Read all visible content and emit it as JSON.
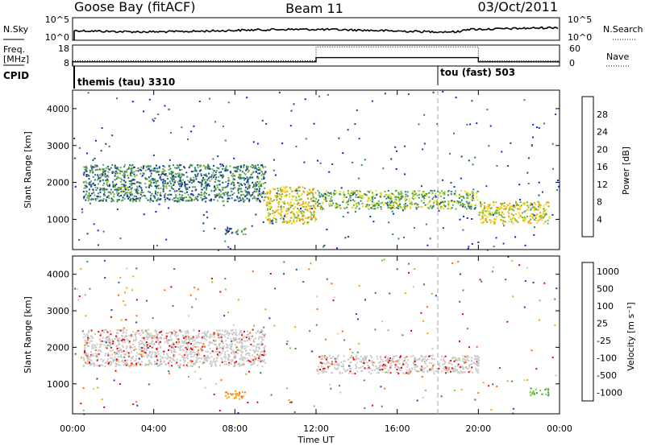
{
  "header": {
    "station": "Goose Bay (fitACF)",
    "beam": "Beam 11",
    "date": "03/Oct/2011"
  },
  "noise_panel": {
    "left_label": "N.Sky",
    "right_label": "N.Search",
    "left_ticks": [
      "10^5",
      "10^0"
    ],
    "right_ticks": [
      "10^5",
      "10^0"
    ]
  },
  "freq_panel": {
    "left_label_1": "Freq.",
    "left_label_2": "[MHz]",
    "right_label": "Nave",
    "left_ticks": [
      "18",
      "8"
    ],
    "right_ticks": [
      "60",
      "0"
    ]
  },
  "cpid_panel": {
    "label": "CPID",
    "entries": [
      {
        "text": "themis (tau) 3310",
        "start_hour": 0
      },
      {
        "text": "tou (fast) 503",
        "start_hour": 18
      }
    ]
  },
  "power_panel": {
    "ylabel": "Slant Range [km]",
    "yticks": [
      "1000",
      "2000",
      "3000",
      "4000"
    ],
    "colorbar_label": "Power [dB]",
    "colorbar_ticks": [
      "4",
      "8",
      "12",
      "16",
      "20",
      "24",
      "28"
    ],
    "colorbar_colors": [
      "#0018ff",
      "#1a3a9a",
      "#2f7f6a",
      "#6fb13a",
      "#e5e01a",
      "#ffa000",
      "#ff5a00",
      "#e60000"
    ]
  },
  "velocity_panel": {
    "ylabel": "Slant Range [km]",
    "yticks": [
      "1000",
      "2000",
      "3000",
      "4000"
    ],
    "colorbar_label": "Velocity [m s⁻¹]",
    "colorbar_ticks": [
      "1000",
      "500",
      "100",
      "25",
      "-25",
      "-100",
      "-500",
      "-1000"
    ],
    "colorbar_colors": [
      "#1a3fbf",
      "#2a6a9a",
      "#3f8f4f",
      "#6fcf3a",
      "#c8c8c8",
      "#ffa000",
      "#ff6a00",
      "#e60000"
    ]
  },
  "x_axis": {
    "label": "Time UT",
    "ticks": [
      "00:00",
      "04:00",
      "08:00",
      "12:00",
      "16:00",
      "20:00",
      "00:00"
    ]
  },
  "chart_data": {
    "type": "heatmap",
    "x_range_hours": [
      0,
      24
    ],
    "y_range_km": [
      180,
      4500
    ],
    "vertical_marker_hour": 18,
    "power_bands_db": [
      {
        "start_hour": 0.5,
        "end_hour": 9.5,
        "range_km": [
          1500,
          2500
        ],
        "power_db": 10
      },
      {
        "start_hour": 2.0,
        "end_hour": 3.0,
        "range_km": [
          1700,
          1900
        ],
        "power_db": 16
      },
      {
        "start_hour": 7.5,
        "end_hour": 8.5,
        "range_km": [
          600,
          800
        ],
        "power_db": 12
      },
      {
        "start_hour": 9.5,
        "end_hour": 12.0,
        "range_km": [
          900,
          1900
        ],
        "power_db": 18
      },
      {
        "start_hour": 12.0,
        "end_hour": 20.0,
        "range_km": [
          1300,
          1800
        ],
        "power_db": 14
      },
      {
        "start_hour": 20.0,
        "end_hour": 23.5,
        "range_km": [
          900,
          1500
        ],
        "power_db": 20
      }
    ],
    "velocity_bands_ms": [
      {
        "start_hour": 0.5,
        "end_hour": 9.5,
        "range_km": [
          1500,
          2500
        ],
        "velocity_ms": 0
      },
      {
        "start_hour": 7.5,
        "end_hour": 8.5,
        "range_km": [
          600,
          800
        ],
        "velocity_ms": -500
      },
      {
        "start_hour": 12.0,
        "end_hour": 20.0,
        "range_km": [
          1300,
          1800
        ],
        "velocity_ms": 0
      },
      {
        "start_hour": 22.5,
        "end_hour": 23.5,
        "range_km": [
          700,
          900
        ],
        "velocity_ms": 100
      }
    ],
    "frequency_mhz": [
      {
        "start_hour": 0,
        "end_hour": 12,
        "value": 10
      },
      {
        "start_hour": 12,
        "end_hour": 20,
        "value": 12
      },
      {
        "start_hour": 20,
        "end_hour": 24,
        "value": 10
      }
    ],
    "nave": [
      {
        "start_hour": 0,
        "end_hour": 12,
        "value": 15
      },
      {
        "start_hour": 12,
        "end_hour": 20,
        "value": 55
      },
      {
        "start_hour": 20,
        "end_hour": 24,
        "value": 15
      }
    ]
  }
}
